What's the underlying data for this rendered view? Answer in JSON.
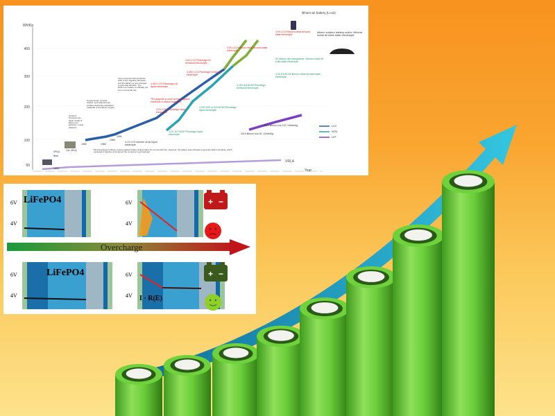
{
  "chart": {
    "y_axis_label": "Wh/Kg",
    "y_ticks": [
      "400",
      "300",
      "200",
      "100",
      "50"
    ],
    "x_axis_label": "Year",
    "x_ticks": [
      "1800",
      "1900",
      "1990",
      "2000",
      "2005",
      "2010",
      "2015",
      "2020",
      "2025",
      "2030"
    ],
    "legend": [
      {
        "label": "LCO",
        "color": "#2c5ea8"
      },
      {
        "label": "NCM",
        "color": "#2aa3b0"
      },
      {
        "label": "LFP",
        "color": "#7b3fc4"
      }
    ],
    "vrla_label": "VRLA",
    "annotations": {
      "air": "lithium-air battery (Li-air)",
      "sulphur": "lithium sulphur battery sulfur +lithium metal all solid-state electrolyte",
      "armand": "Armand: Proposes the basic model of lithium-ion batteries: rocket batteries",
      "goodenough": "Goodenough: LiCoO2, LiNiO2, and LiMn2O4 are positive electrode embedded materials of the lithium engine",
      "sony": "Sony proposes that petroleum coke is the negative electrode, and the battery is now charged to generate dendrite. The lithium-ion battery is officially put into commercial use",
      "graphite": "The graphite is used as the negative electrode in lithium batteries",
      "moli": "Moli developed a lithium-metal negative battery (liquid state) for commercial use. However, the battery was charged to generate lithium dendrite, which exploded in batches and caused the company to go bankrupt",
      "lco41": "4.1V LCO+stoned oil tar liquid electrolyte",
      "lco42": "4.2V LCO+Plumbago liquid electrolyte",
      "lco435": "4.35V LCO Plumbago+Al liquid electrolyte",
      "lco445": "4.45V LCO Plumbago+si liquid electrolyte",
      "lco46": "4.6V LCO Plumbago+si semisolid electrolyte",
      "lco45m": "4.5V LCO+lithium metal all solid-state electrolyte",
      "lco49m": "4.9V LCO+lithium metal all solid-state electrolyte",
      "ncm42": "4.2V 111 NCM+Plumbago liquid electrolyte",
      "ncm425": "4.25V 622 or 523 NCM+Plumbago liquid electrolyte",
      "ncm425b": "4.25V 811NCM+Plumbago semisolid electrolyte",
      "ncm43": "4.3V 811NCM+lithium metal all solid-state electrolyte",
      "ncm5": "5V lithium-rich manganese +lithium metal all solid-state electrolyte",
      "lfp2019": "2019 lithium iron 6C 120wh/kg",
      "lfp2025": "2025 lithium iron 12C 130wh/kg",
      "birth": "Birth",
      "vrla1": "VRLA",
      "car": "Car VRLA",
      "y1859": "1859",
      "y1980": "1980",
      "y1985": "1985",
      "y1989": "1989",
      "y1991": "1991"
    }
  },
  "diagram": {
    "material_top": "LiFePO4",
    "material_bottom": "LiFePO4",
    "v6": "6V",
    "v4": "4V",
    "arrow_label": "Overcharge",
    "formula": "I · R(E)",
    "battery_plus": "+",
    "battery_minus": "−"
  },
  "colors": {
    "lco": "#2c5ea8",
    "ncm": "#2aa3b0",
    "lfp": "#7b3fc4",
    "solid": "#7fae3a",
    "arrow": "#1aa6c8",
    "battery": "#6ccf3a"
  }
}
